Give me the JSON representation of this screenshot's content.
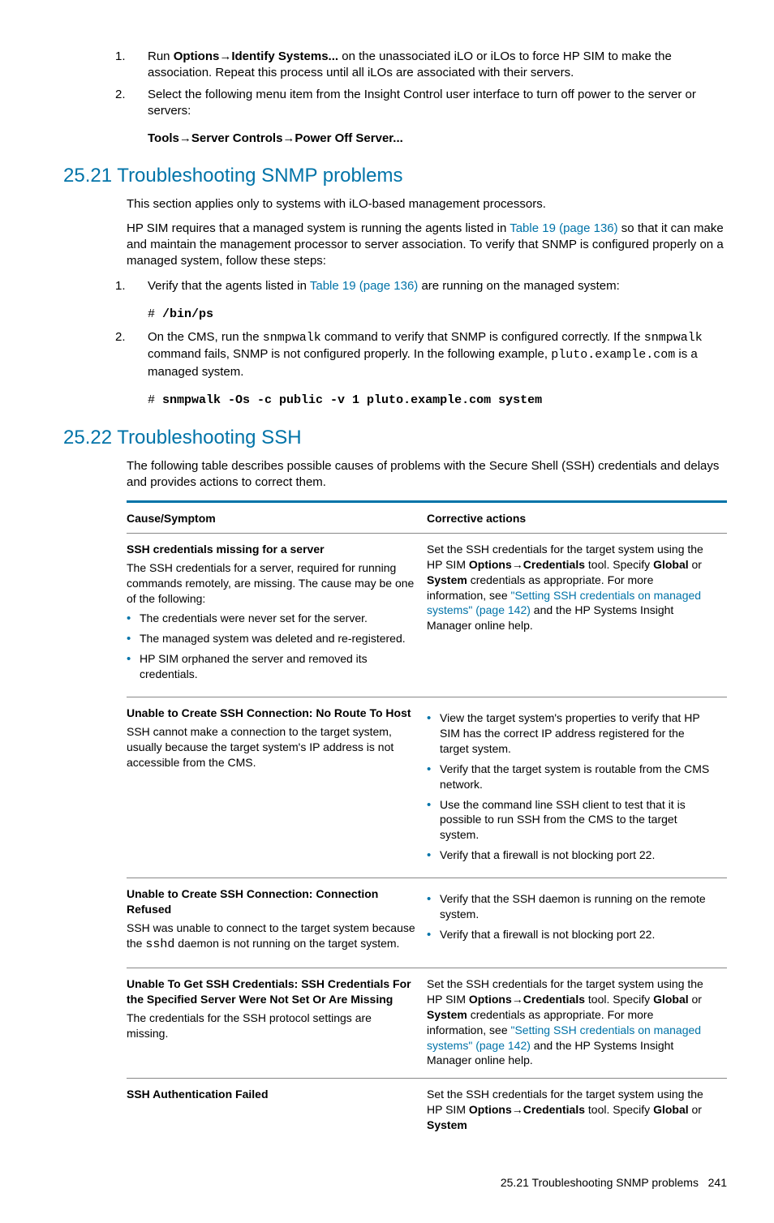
{
  "top_list": {
    "item1": {
      "marker": "1.",
      "text_pre": "Run ",
      "bold": "Options→Identify Systems...",
      "text_post": " on the unassociated iLO or iLOs to force HP SIM to make the association. Repeat this process until all iLOs are associated with their servers."
    },
    "item2": {
      "marker": "2.",
      "text": "Select the following menu item from the Insight Control user interface to turn off power to the server or servers:"
    },
    "sub_bold": "Tools→Server Controls→Power Off Server..."
  },
  "section1": {
    "heading": "25.21 Troubleshooting SNMP problems",
    "p1": "This section applies only to systems with iLO-based management processors.",
    "p2_pre": "HP SIM requires that a managed system is running the agents listed in ",
    "p2_link": "Table 19 (page 136)",
    "p2_post": " so that it can make and maintain the management processor to server association. To verify that SNMP is configured properly on a managed system, follow these steps:",
    "steps": {
      "s1": {
        "marker": "1.",
        "pre": "Verify that the agents listed in ",
        "link": "Table 19 (page 136)",
        "post": " are running on the managed system:"
      },
      "code1_hash": "#  ",
      "code1": "/bin/ps",
      "s2": {
        "marker": "2.",
        "pre": "On the CMS, run the ",
        "mono1": "snmpwalk",
        "mid1": " command to verify that SNMP is configured correctly. If the ",
        "mono2": "snmpwalk",
        "mid2": " command fails, SNMP is not configured properly. In the following example, ",
        "mono3": "pluto.example.com",
        "post": " is a managed system."
      },
      "code2_hash": "# ",
      "code2": "snmpwalk -Os -c public -v 1 pluto.example.com system"
    }
  },
  "section2": {
    "heading": "25.22 Troubleshooting SSH",
    "p1": "The following table describes possible causes of problems with the Secure Shell (SSH) credentials and delays and provides actions to correct them."
  },
  "table": {
    "th1": "Cause/Symptom",
    "th2": "Corrective actions",
    "row1": {
      "left_title": "SSH credentials missing for a server",
      "left_p": "The SSH credentials for a server, required for running commands remotely, are missing. The cause may be one of the following:",
      "left_b1": "The credentials were never set for the server.",
      "left_b2": "The managed system was deleted and re-registered.",
      "left_b3": "HP SIM orphaned the server and removed its credentials.",
      "right_pre": "Set the SSH credentials for the target system using the HP SIM ",
      "right_bold1": "Options→Credentials",
      "right_mid1": " tool. Specify ",
      "right_bold2": "Global",
      "right_mid2": " or ",
      "right_bold3": "System",
      "right_mid3": " credentials as appropriate. For more information, see ",
      "right_link": "\"Setting SSH credentials on managed systems\" (page 142)",
      "right_post": " and the HP Systems Insight Manager online help."
    },
    "row2": {
      "left_title": "Unable to Create SSH Connection: No Route To Host",
      "left_p": "SSH cannot make a connection to the target system, usually because the target system's IP address is not accessible from the CMS.",
      "right_b1": "View the target system's properties to verify that HP SIM has the correct IP address registered for the target system.",
      "right_b2": "Verify that the target system is routable from the CMS network.",
      "right_b3": "Use the command line SSH client to test that it is possible to run SSH from the CMS to the target system.",
      "right_b4": "Verify that a firewall is not blocking port 22."
    },
    "row3": {
      "left_title": "Unable to Create SSH Connection: Connection Refused",
      "left_pre": "SSH was unable to connect to the target system because the ",
      "left_mono": "sshd",
      "left_post": " daemon is not running on the target system.",
      "right_b1": "Verify that the SSH daemon is running on the remote system.",
      "right_b2": "Verify that a firewall is not blocking port 22."
    },
    "row4": {
      "left_title": "Unable To Get SSH Credentials: SSH Credentials For the Specified Server Were Not Set Or Are Missing",
      "left_p": "The credentials for the SSH protocol settings are missing.",
      "right_pre": "Set the SSH credentials for the target system using the HP SIM ",
      "right_bold1": "Options→Credentials",
      "right_mid1": " tool. Specify ",
      "right_bold2": "Global",
      "right_mid2": " or ",
      "right_bold3": "System",
      "right_mid3": " credentials as appropriate. For more information, see ",
      "right_link": "\"Setting SSH credentials on managed systems\" (page 142)",
      "right_post": " and the HP Systems Insight Manager online help."
    },
    "row5": {
      "left_title": "SSH Authentication Failed",
      "right_pre": "Set the SSH credentials for the target system using the HP SIM ",
      "right_bold1": "Options→Credentials",
      "right_mid1": " tool. Specify ",
      "right_bold2": "Global",
      "right_mid2": " or ",
      "right_bold3": "System"
    }
  },
  "footer": {
    "text": "25.21 Troubleshooting SNMP problems",
    "page": "241"
  }
}
